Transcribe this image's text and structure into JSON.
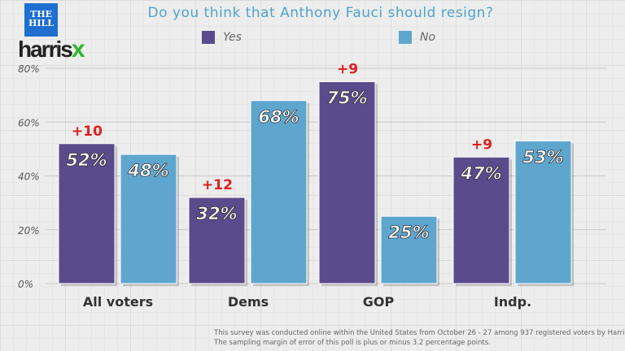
{
  "logo": {
    "hill": "THE HILL",
    "harrisx": "harrisx"
  },
  "chart_data": {
    "type": "bar",
    "title": "Do you think that Anthony Fauci should resign?",
    "categories": [
      "All voters",
      "Dems",
      "GOP",
      "Indp."
    ],
    "series": [
      {
        "name": "Yes",
        "values": [
          52,
          32,
          75,
          47
        ],
        "labels": [
          "52%",
          "32%",
          "75%",
          "47%"
        ],
        "color": "#5a4b8c"
      },
      {
        "name": "No",
        "values": [
          48,
          68,
          25,
          53
        ],
        "labels": [
          "48%",
          "68%",
          "25%",
          "53%"
        ],
        "color": "#5fa6cf"
      }
    ],
    "margins": [
      "+10",
      "+12",
      "+9",
      "+9"
    ],
    "margin_color": "#e02020",
    "yticks": [
      0,
      20,
      40,
      60,
      80
    ],
    "ytick_labels": [
      "0%",
      "20%",
      "40%",
      "60%",
      "80%"
    ],
    "ylim": [
      0,
      80
    ],
    "legend_position": "top",
    "grid": true
  },
  "footnote": {
    "line1": "This survey was conducted online within the United States from October 26 - 27 among 937 registered voters by HarrisX.",
    "line2": "The sampling margin of error of this poll is plus or minus 3.2 percentage points."
  }
}
